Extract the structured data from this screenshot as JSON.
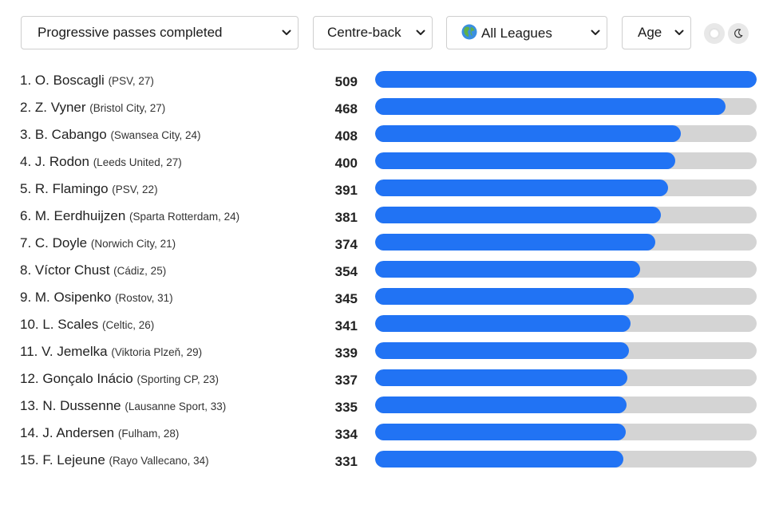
{
  "filters": {
    "metric": "Progressive passes completed",
    "position": "Centre-back",
    "league": "All Leagues",
    "sort": "Age"
  },
  "theme": {
    "icons": [
      "light-mode-icon",
      "moon-icon"
    ]
  },
  "colors": {
    "bar_fill": "#2173f4",
    "bar_track": "#d4d4d4"
  },
  "max_value": 509,
  "players": [
    {
      "rank_name": "1. O. Boscagli",
      "meta": "(PSV, 27)",
      "value": 509
    },
    {
      "rank_name": "2. Z. Vyner",
      "meta": "(Bristol City, 27)",
      "value": 468
    },
    {
      "rank_name": "3. B. Cabango",
      "meta": "(Swansea City, 24)",
      "value": 408
    },
    {
      "rank_name": "4. J. Rodon",
      "meta": "(Leeds United, 27)",
      "value": 400
    },
    {
      "rank_name": "5. R. Flamingo",
      "meta": "(PSV, 22)",
      "value": 391
    },
    {
      "rank_name": "6. M. Eerdhuijzen",
      "meta": "(Sparta Rotterdam, 24)",
      "value": 381
    },
    {
      "rank_name": "7. C. Doyle",
      "meta": "(Norwich City, 21)",
      "value": 374
    },
    {
      "rank_name": "8. Víctor Chust",
      "meta": "(Cádiz, 25)",
      "value": 354
    },
    {
      "rank_name": "9. M. Osipenko",
      "meta": "(Rostov, 31)",
      "value": 345
    },
    {
      "rank_name": "10. L. Scales",
      "meta": "(Celtic, 26)",
      "value": 341
    },
    {
      "rank_name": "11. V. Jemelka",
      "meta": "(Viktoria Plzeň, 29)",
      "value": 339
    },
    {
      "rank_name": "12. Gonçalo Inácio",
      "meta": "(Sporting CP, 23)",
      "value": 337
    },
    {
      "rank_name": "13. N. Dussenne",
      "meta": "(Lausanne Sport, 33)",
      "value": 335
    },
    {
      "rank_name": "14. J. Andersen",
      "meta": "(Fulham, 28)",
      "value": 334
    },
    {
      "rank_name": "15. F. Lejeune",
      "meta": "(Rayo Vallecano, 34)",
      "value": 331
    }
  ]
}
